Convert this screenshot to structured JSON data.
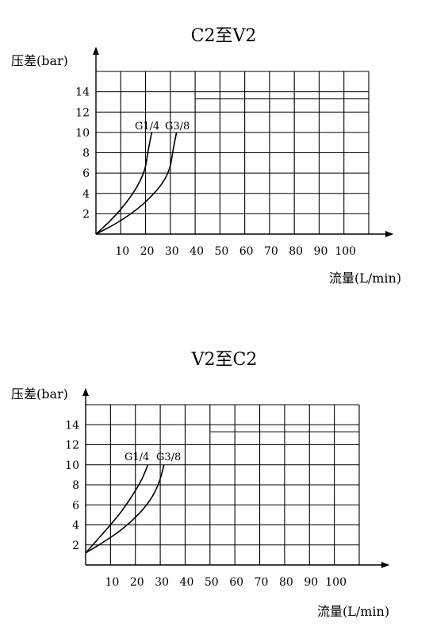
{
  "chart_data": [
    {
      "type": "line",
      "title": "C2至V2",
      "xlabel": "流量(L/min)",
      "ylabel": "压差(bar)",
      "xlim": [
        0,
        110
      ],
      "ylim": [
        0,
        16
      ],
      "xticks": [
        10,
        20,
        30,
        40,
        50,
        60,
        70,
        80,
        90,
        100
      ],
      "yticks": [
        2,
        4,
        6,
        8,
        10,
        12,
        14
      ],
      "grid": true,
      "series": [
        {
          "name": "G1/4",
          "x": [
            0,
            5,
            10,
            15,
            18,
            20,
            21,
            22.5
          ],
          "y": [
            0,
            1.1,
            2.4,
            4.0,
            5.3,
            6.5,
            8.2,
            10
          ]
        },
        {
          "name": "G3/8",
          "x": [
            0,
            8,
            16,
            22,
            27,
            30,
            31,
            32.5
          ],
          "y": [
            0,
            1.0,
            2.3,
            3.6,
            5.0,
            6.5,
            8.2,
            10
          ]
        }
      ]
    },
    {
      "type": "line",
      "title": "V2至C2",
      "xlabel": "流量(L/min)",
      "ylabel": "压差(bar)",
      "xlim": [
        0,
        110
      ],
      "ylim": [
        0,
        16
      ],
      "xticks": [
        10,
        20,
        30,
        40,
        50,
        60,
        70,
        80,
        90,
        100
      ],
      "yticks": [
        2,
        4,
        6,
        8,
        10,
        12,
        14
      ],
      "grid": true,
      "series": [
        {
          "name": "G1/4",
          "x": [
            0,
            5,
            10,
            15,
            20,
            23,
            25
          ],
          "y": [
            1.2,
            2.6,
            4.0,
            5.5,
            7.4,
            8.7,
            10
          ]
        },
        {
          "name": "G3/8",
          "x": [
            0,
            8,
            15,
            22,
            27,
            30,
            31.5
          ],
          "y": [
            1.2,
            2.4,
            3.6,
            5.2,
            6.8,
            8.5,
            10
          ]
        }
      ]
    }
  ]
}
